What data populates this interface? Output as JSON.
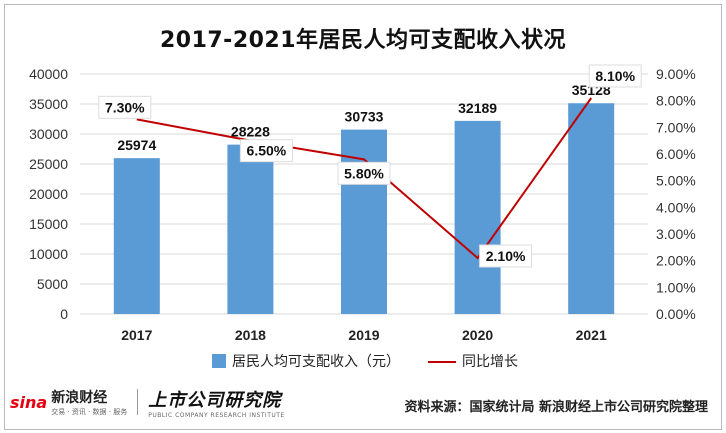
{
  "chart_title": "2017-2021年居民人均可支配收入状况",
  "source": "资料来源：国家统计局 新浪财经上市公司研究院整理",
  "brand": {
    "sina_mark": "sina",
    "sina_name": "新浪财经",
    "sina_sub": "交易 · 资讯 · 数据 · 服务",
    "lab_name": "上市公司研究院",
    "lab_sub": "PUBLIC COMPANY RESEARCH INSTITUTE"
  },
  "colors": {
    "bar": "#5b9bd5",
    "line": "#c00000",
    "grid": "#d9d9d9",
    "axis_text": "#333333"
  },
  "chart_data": {
    "type": "bar",
    "categories": [
      "2017",
      "2018",
      "2019",
      "2020",
      "2021"
    ],
    "series": [
      {
        "name": "居民人均可支配收入（元）",
        "type": "bar",
        "axis": "left",
        "values": [
          25974,
          28228,
          30733,
          32189,
          35128
        ]
      },
      {
        "name": "同比增长",
        "type": "line",
        "axis": "right",
        "values": [
          7.3,
          6.5,
          5.8,
          2.1,
          8.1
        ]
      }
    ],
    "title": "2017-2021年居民人均可支配收入状况",
    "xlabel": "",
    "ylabel": "",
    "ylim": [
      0,
      40000
    ],
    "y_ticks": [
      0,
      5000,
      10000,
      15000,
      20000,
      25000,
      30000,
      35000,
      40000
    ],
    "y2lim": [
      0,
      9
    ],
    "y2_ticks": [
      "0.00%",
      "1.00%",
      "2.00%",
      "3.00%",
      "4.00%",
      "5.00%",
      "6.00%",
      "7.00%",
      "8.00%",
      "9.00%"
    ],
    "bar_labels": [
      "25974",
      "28228",
      "30733",
      "32189",
      "35128"
    ],
    "line_labels": [
      "7.30%",
      "6.50%",
      "5.80%",
      "2.10%",
      "8.10%"
    ],
    "grid": true,
    "legend_position": "bottom"
  }
}
